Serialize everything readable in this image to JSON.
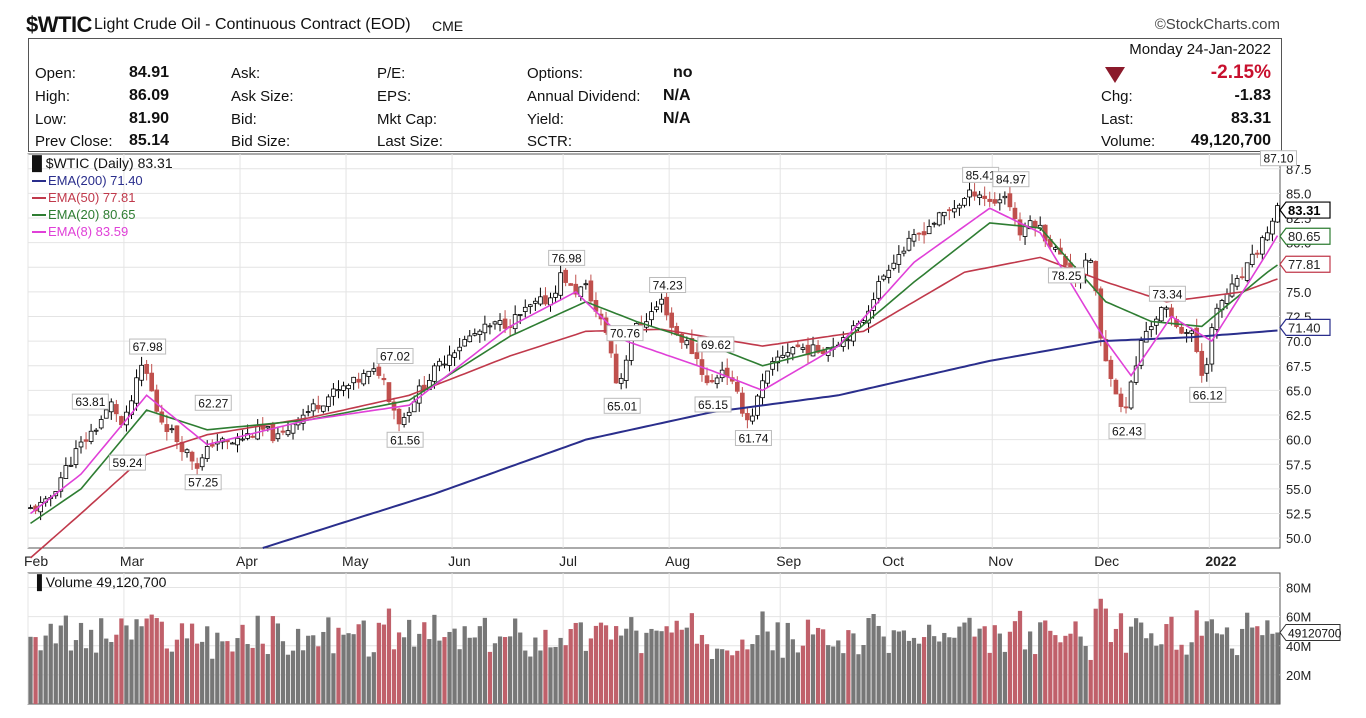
{
  "header": {
    "symbol": "$WTIC",
    "description": "Light Crude Oil - Continuous Contract (EOD)",
    "exchange": "CME",
    "brand": "©StockCharts.com"
  },
  "quote": {
    "left": [
      {
        "label": "Open:",
        "value": "84.91"
      },
      {
        "label": "High:",
        "value": "86.09"
      },
      {
        "label": "Low:",
        "value": "81.90"
      },
      {
        "label": "Prev Close:",
        "value": "85.14"
      }
    ],
    "col2": [
      "Ask:",
      "Ask Size:",
      "Bid:",
      "Bid Size:"
    ],
    "col3": [
      "P/E:",
      "EPS:",
      "Mkt Cap:",
      "Last Size:"
    ],
    "col4": [
      {
        "label": "Options:",
        "value": "no"
      },
      {
        "label": "Annual Dividend:",
        "value": "N/A"
      },
      {
        "label": "Yield:",
        "value": "N/A"
      },
      {
        "label": "SCTR:",
        "value": ""
      }
    ],
    "date": "Monday  24-Jan-2022",
    "change_pct": "-2.15%",
    "right": [
      {
        "label": "Chg:",
        "value": "-1.83"
      },
      {
        "label": "Last:",
        "value": "83.31"
      },
      {
        "label": "Volume:",
        "value": "49,120,700"
      }
    ]
  },
  "colors": {
    "up": "#777777",
    "down": "#c0504d",
    "vol_down": "#c0606a",
    "ema200": "#2a2e8c",
    "ema50": "#c0394b",
    "ema20": "#2e7d32",
    "ema8": "#e040d8"
  },
  "chart_data": [
    {
      "type": "line",
      "title": "$WTIC (Daily) 83.31",
      "legend": [
        {
          "name": "EMA(200) 71.40",
          "key": "ema200"
        },
        {
          "name": "EMA(50) 77.81",
          "key": "ema50"
        },
        {
          "name": "EMA(20) 80.65",
          "key": "ema20"
        },
        {
          "name": "EMA(8) 83.59",
          "key": "ema8"
        }
      ],
      "ylim": [
        49,
        89
      ],
      "yticks": [
        50.0,
        52.5,
        55.0,
        57.5,
        60.0,
        62.5,
        65.0,
        67.5,
        70.0,
        72.5,
        75.0,
        77.5,
        80.0,
        82.5,
        85.0,
        87.5
      ],
      "x_months": [
        {
          "label": "Feb",
          "i": 0
        },
        {
          "label": "Mar",
          "i": 19
        },
        {
          "label": "Apr",
          "i": 42
        },
        {
          "label": "May",
          "i": 63
        },
        {
          "label": "Jun",
          "i": 84
        },
        {
          "label": "Jul",
          "i": 106
        },
        {
          "label": "Aug",
          "i": 127
        },
        {
          "label": "Sep",
          "i": 149
        },
        {
          "label": "Oct",
          "i": 170
        },
        {
          "label": "Nov",
          "i": 191
        },
        {
          "label": "Dec",
          "i": 212
        },
        {
          "label": "2022",
          "i": 234
        }
      ],
      "n_bars": 248,
      "price_path": [
        [
          0,
          52.8
        ],
        [
          4,
          53.5
        ],
        [
          7,
          56.5
        ],
        [
          10,
          59.0
        ],
        [
          14,
          61.5
        ],
        [
          17,
          63.8
        ],
        [
          19,
          61.0
        ],
        [
          21,
          64.5
        ],
        [
          23,
          67.9
        ],
        [
          26,
          62.5
        ],
        [
          29,
          60.5
        ],
        [
          32,
          58.5
        ],
        [
          34,
          57.3
        ],
        [
          37,
          60.0
        ],
        [
          40,
          59.5
        ],
        [
          44,
          60.5
        ],
        [
          47,
          61.0
        ],
        [
          50,
          60.0
        ],
        [
          53,
          62.0
        ],
        [
          56,
          63.0
        ],
        [
          60,
          64.5
        ],
        [
          64,
          65.5
        ],
        [
          67,
          66.5
        ],
        [
          70,
          67.0
        ],
        [
          72,
          64.0
        ],
        [
          74,
          61.6
        ],
        [
          77,
          64.5
        ],
        [
          80,
          66.5
        ],
        [
          84,
          69.0
        ],
        [
          88,
          70.5
        ],
        [
          92,
          71.5
        ],
        [
          96,
          72.0
        ],
        [
          100,
          73.5
        ],
        [
          104,
          74.5
        ],
        [
          106,
          77.0
        ],
        [
          108,
          75.0
        ],
        [
          111,
          75.5
        ],
        [
          113,
          72.5
        ],
        [
          115,
          70.8
        ],
        [
          117,
          65.0
        ],
        [
          120,
          71.0
        ],
        [
          123,
          72.5
        ],
        [
          126,
          74.2
        ],
        [
          128,
          71.0
        ],
        [
          131,
          69.6
        ],
        [
          133,
          68.0
        ],
        [
          135,
          65.2
        ],
        [
          138,
          67.5
        ],
        [
          141,
          64.0
        ],
        [
          143,
          61.7
        ],
        [
          146,
          66.0
        ],
        [
          149,
          68.5
        ],
        [
          152,
          69.5
        ],
        [
          156,
          69.0
        ],
        [
          159,
          69.5
        ],
        [
          162,
          70.5
        ],
        [
          165,
          71.5
        ],
        [
          168,
          75.0
        ],
        [
          171,
          78.0
        ],
        [
          174,
          79.5
        ],
        [
          178,
          81.5
        ],
        [
          182,
          83.0
        ],
        [
          186,
          84.5
        ],
        [
          188,
          85.4
        ],
        [
          191,
          84.0
        ],
        [
          194,
          84.9
        ],
        [
          197,
          80.5
        ],
        [
          199,
          82.5
        ],
        [
          202,
          80.5
        ],
        [
          205,
          78.3
        ],
        [
          208,
          76.5
        ],
        [
          211,
          78.5
        ],
        [
          213,
          68.5
        ],
        [
          215,
          66.5
        ],
        [
          217,
          62.4
        ],
        [
          219,
          66.0
        ],
        [
          221,
          70.5
        ],
        [
          223,
          72.0
        ],
        [
          225,
          73.3
        ],
        [
          228,
          71.5
        ],
        [
          231,
          70.5
        ],
        [
          233,
          66.1
        ],
        [
          235,
          72.0
        ],
        [
          237,
          74.5
        ],
        [
          240,
          76.0
        ],
        [
          243,
          78.5
        ],
        [
          246,
          81.5
        ],
        [
          249,
          84.5
        ],
        [
          251,
          86.0
        ],
        [
          252,
          87.1
        ],
        [
          254,
          85.2
        ],
        [
          255,
          83.31
        ]
      ],
      "ema200_path": [
        [
          46,
          49.0
        ],
        [
          80,
          54.5
        ],
        [
          110,
          60.0
        ],
        [
          135,
          62.8
        ],
        [
          160,
          64.5
        ],
        [
          190,
          68.0
        ],
        [
          212,
          70.0
        ],
        [
          230,
          70.4
        ],
        [
          255,
          71.4
        ]
      ],
      "ema50_path": [
        [
          0,
          48.0
        ],
        [
          10,
          52.5
        ],
        [
          23,
          58.5
        ],
        [
          35,
          60.5
        ],
        [
          55,
          62.2
        ],
        [
          75,
          64.5
        ],
        [
          95,
          68.5
        ],
        [
          110,
          71.0
        ],
        [
          125,
          71.2
        ],
        [
          145,
          69.5
        ],
        [
          165,
          71.0
        ],
        [
          185,
          77.0
        ],
        [
          200,
          78.5
        ],
        [
          213,
          76.0
        ],
        [
          225,
          74.0
        ],
        [
          240,
          75.0
        ],
        [
          255,
          77.81
        ]
      ],
      "ema20_path": [
        [
          0,
          51.5
        ],
        [
          10,
          55.0
        ],
        [
          23,
          63.0
        ],
        [
          35,
          61.0
        ],
        [
          55,
          62.0
        ],
        [
          75,
          64.0
        ],
        [
          95,
          70.5
        ],
        [
          110,
          74.0
        ],
        [
          120,
          72.0
        ],
        [
          135,
          69.5
        ],
        [
          145,
          67.5
        ],
        [
          160,
          69.5
        ],
        [
          175,
          76.0
        ],
        [
          190,
          82.0
        ],
        [
          200,
          81.5
        ],
        [
          213,
          74.0
        ],
        [
          222,
          72.0
        ],
        [
          232,
          71.5
        ],
        [
          245,
          77.0
        ],
        [
          255,
          80.65
        ]
      ],
      "ema8_path": [
        [
          0,
          52.5
        ],
        [
          10,
          56.5
        ],
        [
          23,
          64.5
        ],
        [
          35,
          59.5
        ],
        [
          55,
          62.0
        ],
        [
          75,
          63.5
        ],
        [
          95,
          71.5
        ],
        [
          108,
          75.0
        ],
        [
          118,
          70.0
        ],
        [
          135,
          67.0
        ],
        [
          145,
          65.0
        ],
        [
          160,
          69.5
        ],
        [
          175,
          78.0
        ],
        [
          190,
          83.5
        ],
        [
          200,
          81.0
        ],
        [
          213,
          70.0
        ],
        [
          218,
          66.5
        ],
        [
          226,
          72.5
        ],
        [
          234,
          70.0
        ],
        [
          245,
          79.0
        ],
        [
          252,
          85.0
        ],
        [
          255,
          83.59
        ]
      ],
      "annotations": [
        {
          "label": "67.98",
          "i": 23,
          "v": 67.98,
          "pos": "above"
        },
        {
          "label": "63.81",
          "i": 17,
          "v": 63.81,
          "pos": "left"
        },
        {
          "label": "62.27",
          "i": 36,
          "v": 62.27,
          "pos": "above"
        },
        {
          "label": "59.24",
          "i": 19,
          "v": 59.24,
          "pos": "below"
        },
        {
          "label": "57.25",
          "i": 34,
          "v": 57.25,
          "pos": "below"
        },
        {
          "label": "67.02",
          "i": 72,
          "v": 67.02,
          "pos": "above"
        },
        {
          "label": "61.56",
          "i": 74,
          "v": 61.56,
          "pos": "below"
        },
        {
          "label": "76.98",
          "i": 106,
          "v": 76.98,
          "pos": "above"
        },
        {
          "label": "70.76",
          "i": 113,
          "v": 70.76,
          "pos": "right"
        },
        {
          "label": "65.01",
          "i": 117,
          "v": 65.01,
          "pos": "below"
        },
        {
          "label": "74.23",
          "i": 126,
          "v": 74.23,
          "pos": "above"
        },
        {
          "label": "69.62",
          "i": 131,
          "v": 69.62,
          "pos": "right"
        },
        {
          "label": "65.15",
          "i": 135,
          "v": 65.15,
          "pos": "below"
        },
        {
          "label": "61.74",
          "i": 143,
          "v": 61.74,
          "pos": "below"
        },
        {
          "label": "85.41",
          "i": 188,
          "v": 85.41,
          "pos": "above"
        },
        {
          "label": "84.97",
          "i": 194,
          "v": 84.97,
          "pos": "above"
        },
        {
          "label": "78.25",
          "i": 205,
          "v": 78.25,
          "pos": "below"
        },
        {
          "label": "62.43",
          "i": 217,
          "v": 62.43,
          "pos": "below"
        },
        {
          "label": "73.34",
          "i": 225,
          "v": 73.34,
          "pos": "above"
        },
        {
          "label": "66.12",
          "i": 233,
          "v": 66.12,
          "pos": "below"
        },
        {
          "label": "87.10",
          "i": 252,
          "v": 87.1,
          "pos": "above"
        }
      ],
      "right_tags": [
        {
          "label": "83.31",
          "v": 83.31,
          "color": "#000000",
          "bold": true
        },
        {
          "label": "80.65",
          "v": 80.65,
          "color": "#2e7d32"
        },
        {
          "label": "77.81",
          "v": 77.81,
          "color": "#c0394b"
        },
        {
          "label": "71.40",
          "v": 71.4,
          "color": "#2a2e8c"
        }
      ]
    },
    {
      "type": "bar",
      "title": "Volume 49,120,700",
      "ylim": [
        0,
        90
      ],
      "yticks": [
        {
          "v": 20,
          "label": "20M"
        },
        {
          "v": 40,
          "label": "40M"
        },
        {
          "v": 60,
          "label": "60M"
        },
        {
          "v": 80,
          "label": "80M"
        }
      ],
      "last_tag": "49120700",
      "last_value": 49.12
    }
  ]
}
